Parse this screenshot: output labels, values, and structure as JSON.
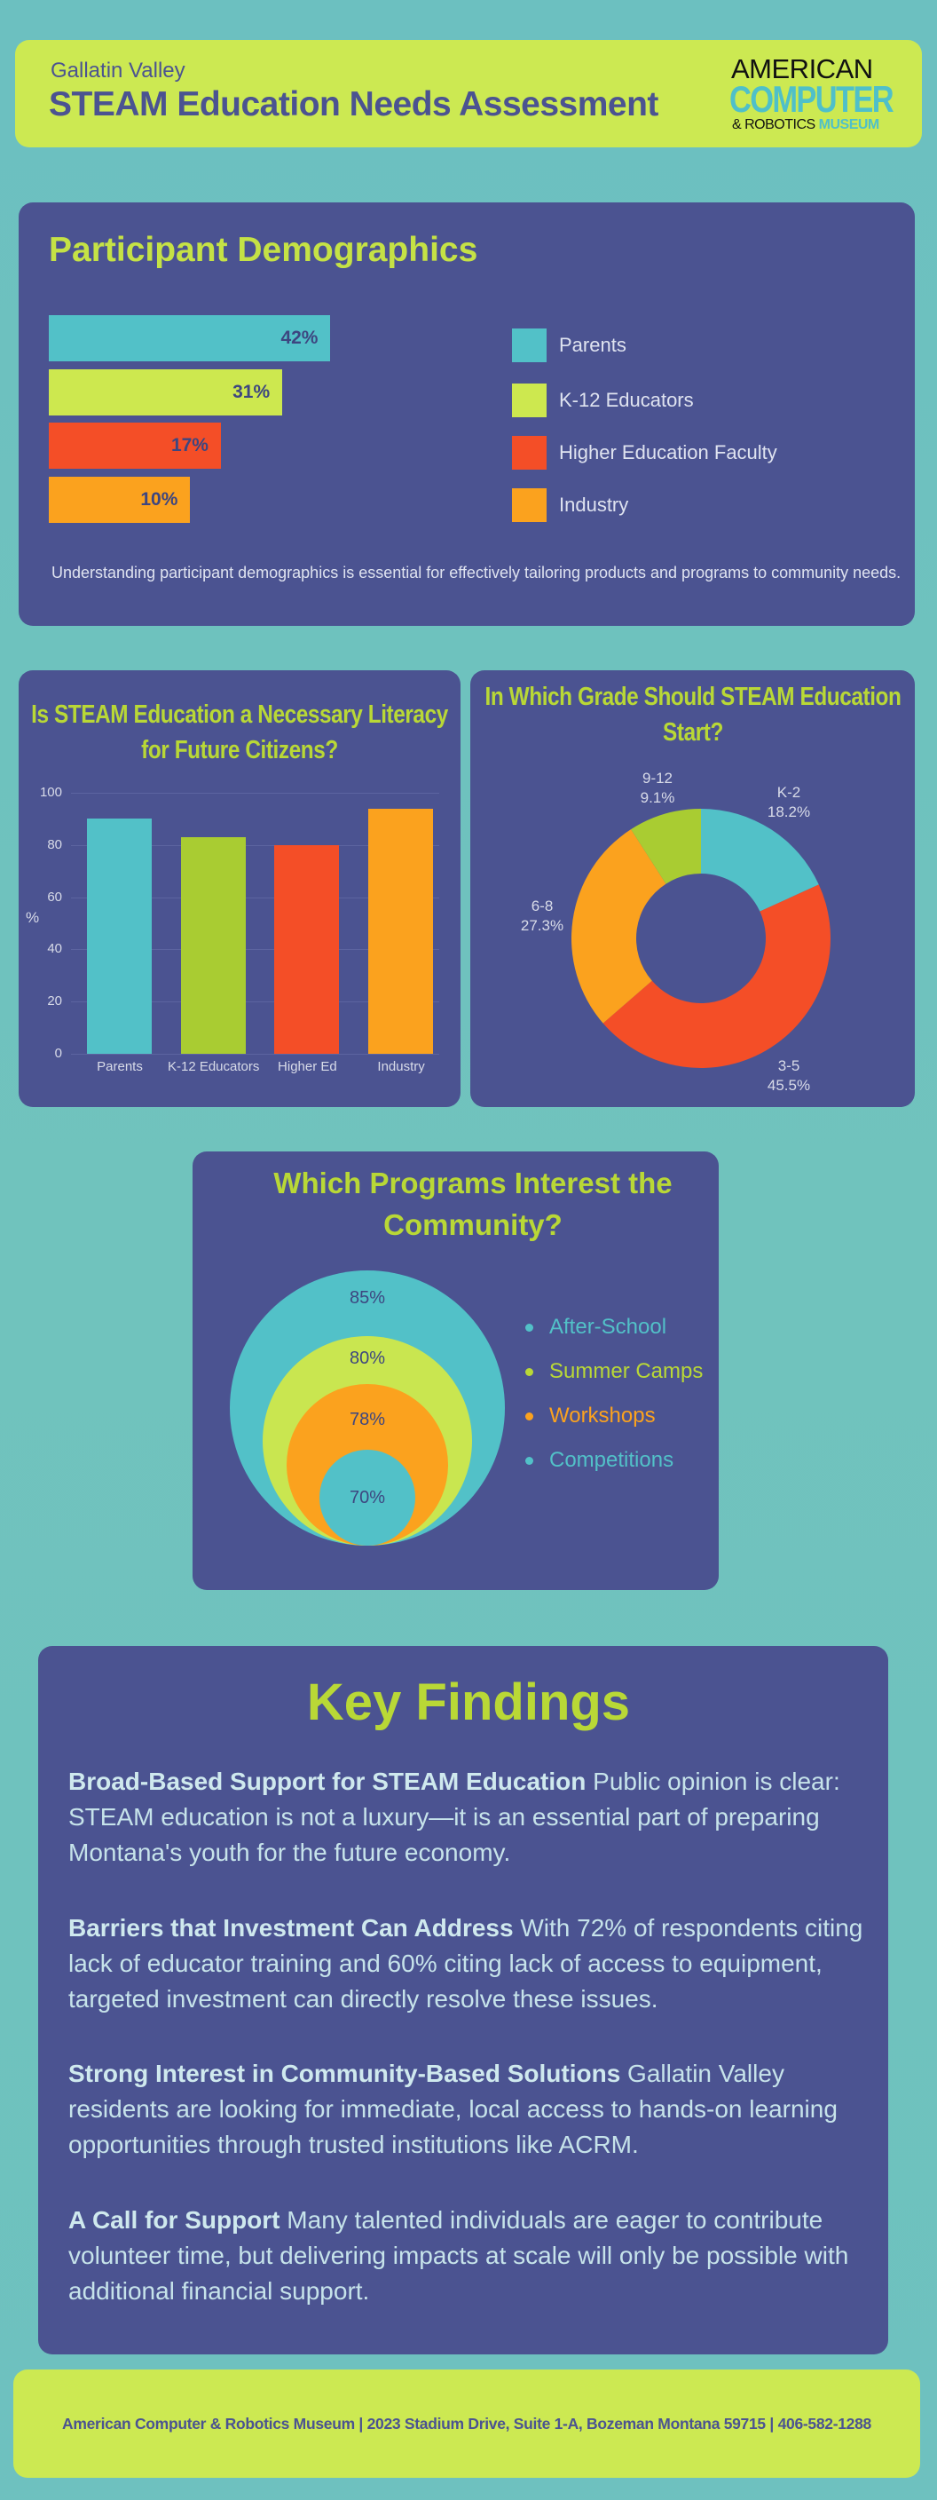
{
  "header": {
    "subtitle": "Gallatin Valley",
    "title": "STEAM Education Needs Assessment",
    "logo": {
      "line1": "AMERICAN",
      "line2": "COMPUTER",
      "line3a": "& ROBOTICS",
      "line3b": "MUSEUM"
    }
  },
  "demographics": {
    "title": "Participant Demographics",
    "description": "Understanding participant demographics is essential for effectively tailoring products and programs to community needs."
  },
  "colors": {
    "teal": "#52c1c8",
    "lime": "#cde84f",
    "green": "#a9cc32",
    "red": "#f44e27",
    "orange": "#fba21e",
    "card": "#4b5391"
  },
  "chart_data": [
    {
      "type": "bar",
      "orientation": "horizontal",
      "title": "Participant Demographics",
      "categories": [
        "Parents",
        "K-12 Educators",
        "Higher Education Faculty",
        "Industry"
      ],
      "values": [
        42,
        31,
        17,
        10
      ],
      "labels": [
        "42%",
        "31%",
        "17%",
        "10%"
      ],
      "colors": [
        "#52c1c8",
        "#cde84f",
        "#f44e27",
        "#fba21e"
      ],
      "legend": "right"
    },
    {
      "type": "bar",
      "title": "Is STEAM Education a Necessary Literacy for Future Citizens?",
      "categories": [
        "Parents",
        "K-12 Educators",
        "Higher Ed",
        "Industry"
      ],
      "values": [
        90,
        83,
        80,
        94
      ],
      "colors": [
        "#52c1c8",
        "#a9cc32",
        "#f44e27",
        "#fba21e"
      ],
      "ylabel": "%",
      "ylim": [
        0,
        100
      ],
      "yticks": [
        "0",
        "20",
        "40",
        "60",
        "80",
        "100"
      ],
      "grid": true
    },
    {
      "type": "pie",
      "donut": true,
      "title": "In Which Grade Should STEAM Education Start?",
      "categories": [
        "K-2",
        "3-5",
        "6-8",
        "9-12"
      ],
      "values": [
        18.2,
        45.5,
        27.3,
        9.1
      ],
      "labels": [
        "18.2%",
        "45.5%",
        "27.3%",
        "9.1%"
      ],
      "colors": [
        "#52c1c8",
        "#f44e27",
        "#fba21e",
        "#a9cc32"
      ]
    },
    {
      "type": "nested-circles",
      "title": "Which Programs Interest the Community?",
      "categories": [
        "After-School",
        "Summer Camps",
        "Workshops",
        "Competitions"
      ],
      "values": [
        85,
        80,
        78,
        70
      ],
      "labels": [
        "85%",
        "80%",
        "78%",
        "70%"
      ],
      "colors": [
        "#52c1c8",
        "#c9e650",
        "#fba21e",
        "#52c1c8"
      ],
      "legend_colors": [
        "#52c1c8",
        "#b9d836",
        "#fba21e",
        "#52c1c8"
      ],
      "legend": "right"
    }
  ],
  "key_findings": {
    "title": "Key Findings",
    "items": [
      {
        "heading": "Broad-Based Support for STEAM Education",
        "body": "Public opinion is clear: STEAM education is not a luxury—it is an essential part of preparing Montana's youth for the future economy."
      },
      {
        "heading": "Barriers that Investment Can Address",
        "body": "With 72% of respondents citing lack of educator training and 60% citing lack of access to equipment, targeted investment can directly resolve these issues."
      },
      {
        "heading": "Strong Interest in Community-Based Solutions",
        "body": "Gallatin Valley residents are looking for immediate, local access to hands-on learning opportunities through trusted institutions like ACRM."
      },
      {
        "heading": "A Call for Support",
        "body": "Many talented individuals are eager to contribute volunteer time, but delivering impacts at scale will only be possible with additional financial support."
      }
    ]
  },
  "footer": {
    "text": "American Computer & Robotics Museum | 2023 Stadium Drive, Suite 1-A, Bozeman Montana 59715 | 406-582-1288"
  }
}
